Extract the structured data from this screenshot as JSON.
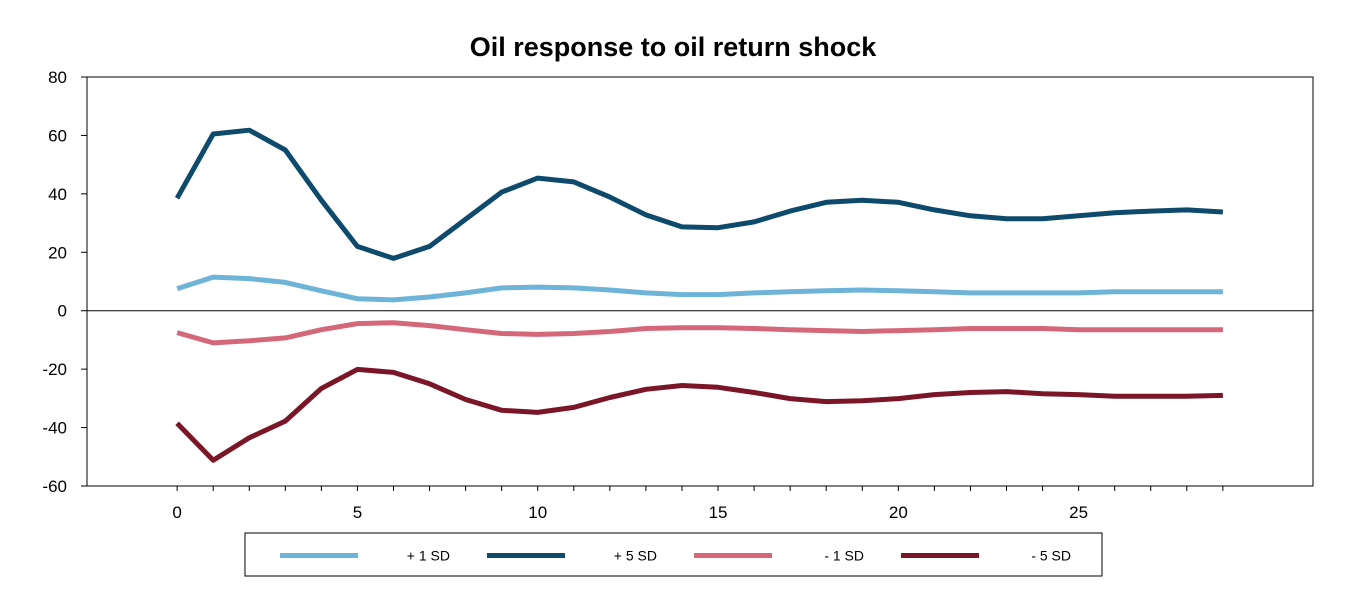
{
  "chart_data": {
    "type": "line",
    "title": "Oil response to oil return shock",
    "xlabel": "",
    "ylabel": "",
    "x": [
      0,
      1,
      2,
      3,
      4,
      5,
      6,
      7,
      8,
      9,
      10,
      11,
      12,
      13,
      14,
      15,
      16,
      17,
      18,
      19,
      20,
      21,
      22,
      23,
      24,
      25,
      26,
      27,
      28,
      29
    ],
    "xticks": [
      0,
      5,
      10,
      15,
      20,
      25
    ],
    "xlim": [
      -2.5,
      31.5
    ],
    "ylim": [
      -60,
      80
    ],
    "yticks": [
      80,
      60,
      40,
      20,
      0,
      -20,
      -40,
      -60
    ],
    "grid": false,
    "legend_position": "bottom",
    "series": [
      {
        "name": "+ 1 SD",
        "color": "#6eb3d8",
        "values": [
          7.5,
          11.5,
          11,
          9.7,
          6.8,
          4.1,
          3.7,
          4.7,
          6.1,
          7.8,
          8.1,
          7.8,
          7.1,
          6.1,
          5.5,
          5.5,
          6.1,
          6.5,
          6.8,
          7.1,
          6.8,
          6.5,
          6.1,
          6.1,
          6.1,
          6.1,
          6.5,
          6.5,
          6.5,
          6.5
        ]
      },
      {
        "name": "+ 5 SD",
        "color": "#0e4a6b",
        "values": [
          38.5,
          60.5,
          61.8,
          55,
          37.8,
          22,
          17.9,
          22,
          31.3,
          40.6,
          45.4,
          44.1,
          38.9,
          32.8,
          28.7,
          28.4,
          30.4,
          34.1,
          37.1,
          37.8,
          37.1,
          34.5,
          32.5,
          31.5,
          31.5,
          32.5,
          33.5,
          34.1,
          34.5,
          33.8
        ]
      },
      {
        "name": "- 1 SD",
        "color": "#d4687a",
        "values": [
          -7.5,
          -11,
          -10.3,
          -9.3,
          -6.5,
          -4.4,
          -4.1,
          -5.1,
          -6.5,
          -7.8,
          -8.1,
          -7.8,
          -7.1,
          -6.1,
          -5.8,
          -5.8,
          -6.1,
          -6.5,
          -6.8,
          -7.1,
          -6.8,
          -6.5,
          -6.1,
          -6.1,
          -6.1,
          -6.5,
          -6.5,
          -6.5,
          -6.5,
          -6.5
        ]
      },
      {
        "name": "- 5 SD",
        "color": "#7a1628",
        "values": [
          -38.5,
          -51.2,
          -43.5,
          -37.8,
          -26.6,
          -20.1,
          -21.1,
          -25,
          -30.4,
          -34.1,
          -34.8,
          -33.1,
          -29.7,
          -26.9,
          -25.6,
          -26.2,
          -28,
          -30.1,
          -31.1,
          -30.8,
          -30.1,
          -28.7,
          -28,
          -27.7,
          -28.4,
          -28.7,
          -29.3,
          -29.3,
          -29.3,
          -29
        ]
      }
    ]
  }
}
